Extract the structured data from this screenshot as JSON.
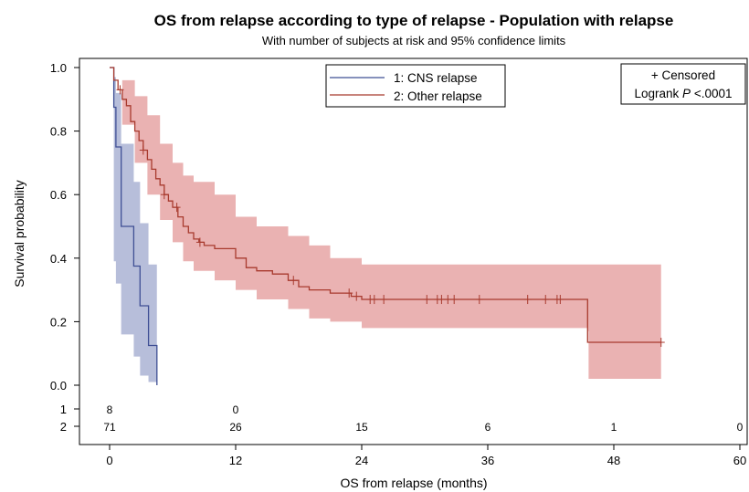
{
  "chart_data": {
    "type": "line",
    "subtype": "kaplan-meier",
    "title": "OS from relapse according to type of relapse - Population with relapse",
    "subtitle": "With number of subjects at risk and 95% confidence limits",
    "xlabel": "OS from relapse (months)",
    "ylabel": "Survival probability",
    "xlim": [
      0,
      60
    ],
    "ylim": [
      0,
      1
    ],
    "xticks": [
      "0",
      "12",
      "24",
      "36",
      "48",
      "60"
    ],
    "yticks": [
      "0.0",
      "0.2",
      "0.4",
      "0.6",
      "0.8",
      "1.0"
    ],
    "legend_position": "top-center",
    "series": [
      {
        "name": "1: CNS relapse",
        "color": "#3f4f94",
        "band_color": "#b3bad8",
        "steps": [
          [
            0,
            1.0
          ],
          [
            0.4,
            0.875
          ],
          [
            0.6,
            0.75
          ],
          [
            1.1,
            0.5
          ],
          [
            2.3,
            0.375
          ],
          [
            2.9,
            0.25
          ],
          [
            3.7,
            0.125
          ],
          [
            4.5,
            0.0
          ]
        ],
        "ci_lower": [
          [
            0,
            1.0
          ],
          [
            0.4,
            0.39
          ],
          [
            0.6,
            0.32
          ],
          [
            1.1,
            0.16
          ],
          [
            2.3,
            0.09
          ],
          [
            2.9,
            0.03
          ],
          [
            3.7,
            0.01
          ],
          [
            4.5,
            0.0
          ]
        ],
        "ci_upper": [
          [
            0,
            1.0
          ],
          [
            0.4,
            0.97
          ],
          [
            0.6,
            0.92
          ],
          [
            1.1,
            0.76
          ],
          [
            2.3,
            0.64
          ],
          [
            2.9,
            0.51
          ],
          [
            3.7,
            0.38
          ],
          [
            4.5,
            0.0
          ]
        ],
        "end_x": 4.5,
        "censored_x": []
      },
      {
        "name": "2: Other relapse",
        "color": "#a83a2e",
        "band_color": "#e9aeae",
        "steps": [
          [
            0,
            1.0
          ],
          [
            0.4,
            0.96
          ],
          [
            0.8,
            0.93
          ],
          [
            1.2,
            0.9
          ],
          [
            1.6,
            0.88
          ],
          [
            2.0,
            0.83
          ],
          [
            2.4,
            0.8
          ],
          [
            2.8,
            0.77
          ],
          [
            3.2,
            0.74
          ],
          [
            3.6,
            0.71
          ],
          [
            4.0,
            0.68
          ],
          [
            4.4,
            0.65
          ],
          [
            4.8,
            0.63
          ],
          [
            5.2,
            0.6
          ],
          [
            5.6,
            0.58
          ],
          [
            6.0,
            0.56
          ],
          [
            6.5,
            0.53
          ],
          [
            7.0,
            0.5
          ],
          [
            7.5,
            0.48
          ],
          [
            8.0,
            0.46
          ],
          [
            8.5,
            0.45
          ],
          [
            9.0,
            0.44
          ],
          [
            10.0,
            0.43
          ],
          [
            11.0,
            0.43
          ],
          [
            12.0,
            0.4
          ],
          [
            13.0,
            0.37
          ],
          [
            14.0,
            0.36
          ],
          [
            15.5,
            0.35
          ],
          [
            17.0,
            0.33
          ],
          [
            18.0,
            0.31
          ],
          [
            19.0,
            0.3
          ],
          [
            21.0,
            0.29
          ],
          [
            23.0,
            0.28
          ],
          [
            24.0,
            0.27
          ],
          [
            45.5,
            0.27
          ],
          [
            45.5,
            0.135
          ]
        ],
        "ci_lower": [
          [
            0,
            1.0
          ],
          [
            1.2,
            0.82
          ],
          [
            2.4,
            0.7
          ],
          [
            3.6,
            0.6
          ],
          [
            4.8,
            0.52
          ],
          [
            6.0,
            0.45
          ],
          [
            7.0,
            0.39
          ],
          [
            8.0,
            0.36
          ],
          [
            10.0,
            0.33
          ],
          [
            12.0,
            0.3
          ],
          [
            14.0,
            0.27
          ],
          [
            17.0,
            0.24
          ],
          [
            19.0,
            0.21
          ],
          [
            21.0,
            0.2
          ],
          [
            24.0,
            0.18
          ],
          [
            45.5,
            0.17
          ],
          [
            45.6,
            0.02
          ],
          [
            52.5,
            0.02
          ]
        ],
        "ci_upper": [
          [
            0,
            1.0
          ],
          [
            1.2,
            0.96
          ],
          [
            2.4,
            0.91
          ],
          [
            3.6,
            0.85
          ],
          [
            4.8,
            0.76
          ],
          [
            6.0,
            0.7
          ],
          [
            7.0,
            0.66
          ],
          [
            8.0,
            0.64
          ],
          [
            10.0,
            0.6
          ],
          [
            12.0,
            0.53
          ],
          [
            14.0,
            0.5
          ],
          [
            17.0,
            0.47
          ],
          [
            19.0,
            0.44
          ],
          [
            21.0,
            0.4
          ],
          [
            24.0,
            0.38
          ],
          [
            45.5,
            0.38
          ],
          [
            45.6,
            0.38
          ],
          [
            52.5,
            0.38
          ]
        ],
        "end_x": 52.5,
        "censored_x": [
          1.0,
          3.2,
          5.2,
          6.4,
          8.6,
          17.5,
          22.8,
          23.5,
          24.8,
          25.2,
          26.1,
          30.2,
          31.2,
          31.6,
          32.2,
          32.8,
          35.2,
          39.8,
          41.5,
          42.6,
          42.9,
          52.5
        ]
      }
    ],
    "at_risk": {
      "times": [
        0,
        12,
        24,
        36,
        48,
        60
      ],
      "rows": [
        {
          "label": "1",
          "counts": [
            "8",
            "0",
            "",
            "",
            "",
            ""
          ]
        },
        {
          "label": "2",
          "counts": [
            "71",
            "26",
            "15",
            "6",
            "1",
            "0"
          ]
        }
      ]
    },
    "inset_box": {
      "line1": "+ Censored",
      "line2_prefix": "Logrank ",
      "line2_p": "P",
      "line2_suffix": " <.0001"
    }
  }
}
